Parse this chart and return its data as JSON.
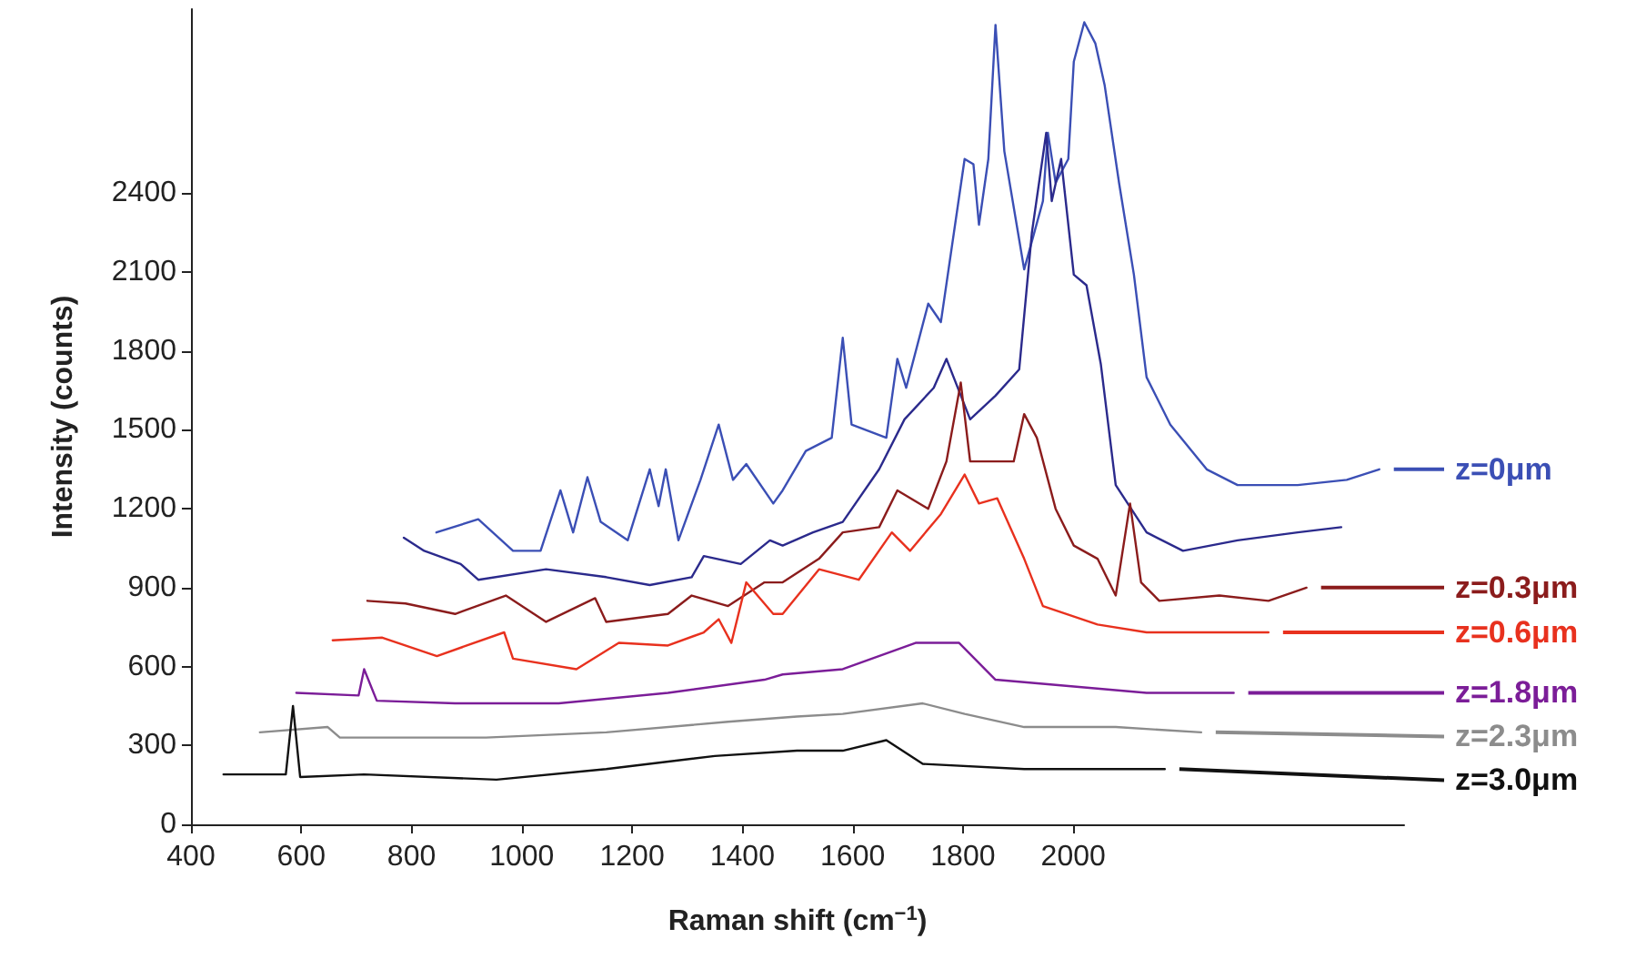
{
  "chart_data": {
    "type": "line",
    "xlabel": "Raman shift (cm$^{−1}$)",
    "ylabel": "Intensity (counts)",
    "xlim": [
      400,
      2600
    ],
    "xticks": [
      400,
      600,
      800,
      1000,
      1200,
      1400,
      1600,
      1800,
      2000
    ],
    "ylim": [
      0,
      3100
    ],
    "yticks": [
      0,
      300,
      600,
      900,
      1200,
      1500,
      1800,
      2100,
      2400
    ],
    "grid": false,
    "legend": "right",
    "marker": "none",
    "line_style": "solid",
    "series": [
      {
        "name": "z=0μm",
        "color": "#3b4fb5",
        "x": [
          845,
          921,
          984,
          1034,
          1070,
          1093,
          1119,
          1143,
          1192,
          1232,
          1248,
          1261,
          1284,
          1324,
          1357,
          1383,
          1407,
          1456,
          1473,
          1515,
          1562,
          1582,
          1598,
          1661,
          1681,
          1697,
          1737,
          1760,
          1803,
          1819,
          1829,
          1846,
          1859,
          1875,
          1911,
          1945,
          1954,
          1968,
          1991,
          2001,
          2020,
          2040,
          2057,
          2083,
          2110,
          2133,
          2176,
          2242,
          2298,
          2407,
          2496,
          2555
        ],
        "values": [
          1110,
          1160,
          1040,
          1040,
          1270,
          1110,
          1320,
          1150,
          1080,
          1350,
          1210,
          1350,
          1080,
          1310,
          1520,
          1310,
          1370,
          1220,
          1270,
          1420,
          1470,
          1850,
          1520,
          1470,
          1770,
          1660,
          1980,
          1910,
          2530,
          2510,
          2280,
          2530,
          3040,
          2560,
          2110,
          2370,
          2630,
          2440,
          2530,
          2900,
          3050,
          2970,
          2810,
          2440,
          2090,
          1700,
          1520,
          1350,
          1290,
          1290,
          1310,
          1350
        ]
      },
      {
        "name": null,
        "color": "#2b2a8c",
        "x": [
          786,
          823,
          889,
          921,
          1044,
          1153,
          1232,
          1308,
          1330,
          1397,
          1450,
          1473,
          1528,
          1582,
          1648,
          1694,
          1747,
          1770,
          1813,
          1859,
          1902,
          1925,
          1951,
          1961,
          1978,
          2001,
          2024,
          2050,
          2077,
          2133,
          2199,
          2298,
          2407,
          2486
        ],
        "values": [
          1090,
          1040,
          990,
          930,
          970,
          940,
          910,
          940,
          1020,
          990,
          1080,
          1060,
          1110,
          1150,
          1350,
          1540,
          1660,
          1770,
          1540,
          1630,
          1730,
          2250,
          2630,
          2370,
          2530,
          2090,
          2050,
          1750,
          1290,
          1110,
          1040,
          1080,
          1110,
          1130
        ]
      },
      {
        "name": "z=0.3μm",
        "color": "#8b1c1c",
        "x": [
          720,
          789,
          879,
          971,
          1044,
          1133,
          1153,
          1265,
          1308,
          1374,
          1440,
          1473,
          1539,
          1582,
          1648,
          1681,
          1737,
          1770,
          1796,
          1813,
          1892,
          1911,
          1934,
          1968,
          2001,
          2044,
          2077,
          2103,
          2123,
          2156,
          2265,
          2354,
          2423
        ],
        "values": [
          850,
          840,
          800,
          870,
          770,
          860,
          770,
          800,
          870,
          830,
          920,
          920,
          1010,
          1110,
          1130,
          1270,
          1200,
          1380,
          1680,
          1380,
          1380,
          1560,
          1470,
          1200,
          1060,
          1010,
          870,
          1220,
          920,
          850,
          870,
          850,
          900
        ]
      },
      {
        "name": "z=0.6μm",
        "color": "#e8311e",
        "x": [
          657,
          747,
          846,
          968,
          984,
          1099,
          1176,
          1265,
          1330,
          1357,
          1380,
          1407,
          1456,
          1473,
          1539,
          1611,
          1671,
          1704,
          1760,
          1803,
          1829,
          1862,
          1911,
          1945,
          2044,
          2133,
          2242,
          2354
        ],
        "values": [
          700,
          710,
          640,
          730,
          630,
          590,
          690,
          680,
          730,
          780,
          690,
          920,
          800,
          800,
          970,
          930,
          1110,
          1040,
          1180,
          1330,
          1220,
          1240,
          1010,
          830,
          760,
          730,
          730,
          730
        ]
      },
      {
        "name": "z=1.8μm",
        "color": "#7b1d98",
        "x": [
          591,
          704,
          714,
          737,
          879,
          1067,
          1265,
          1440,
          1473,
          1582,
          1714,
          1793,
          1859,
          1968,
          2133,
          2291
        ],
        "values": [
          500,
          490,
          590,
          470,
          460,
          460,
          500,
          550,
          570,
          590,
          690,
          690,
          550,
          530,
          500,
          500
        ]
      },
      {
        "name": "z=2.3μm",
        "color": "#8c8c8c",
        "x": [
          525,
          648,
          670,
          935,
          1153,
          1374,
          1499,
          1582,
          1727,
          1803,
          1911,
          2077,
          2232
        ],
        "values": [
          350,
          370,
          330,
          330,
          350,
          390,
          410,
          420,
          460,
          420,
          370,
          370,
          350
        ]
      },
      {
        "name": "z=3.0μm",
        "color": "#111111",
        "x": [
          459,
          572,
          585,
          598,
          714,
          954,
          1153,
          1350,
          1499,
          1582,
          1661,
          1727,
          1911,
          2166
        ],
        "values": [
          190,
          190,
          450,
          180,
          190,
          170,
          210,
          260,
          280,
          280,
          320,
          230,
          210,
          210
        ]
      }
    ]
  }
}
